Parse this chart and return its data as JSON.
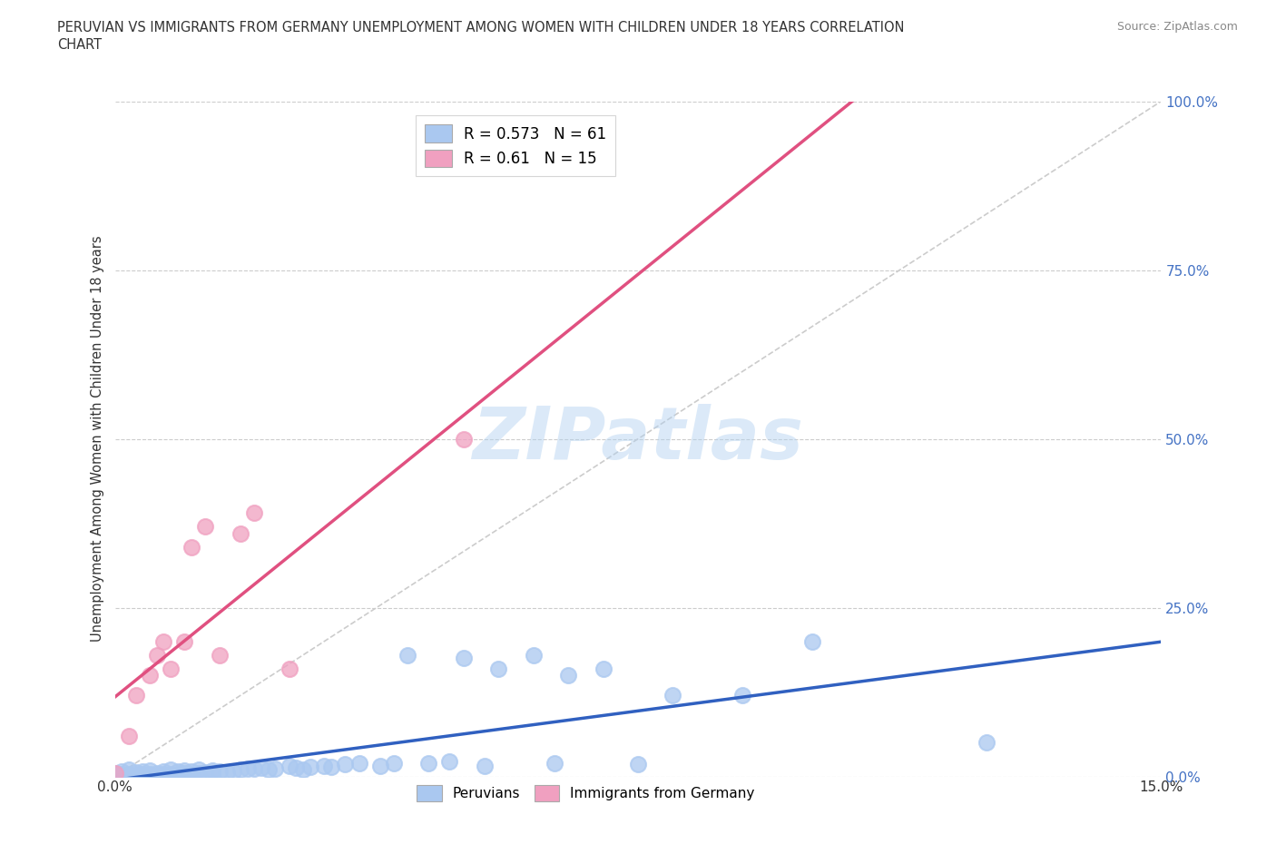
{
  "title_line1": "PERUVIAN VS IMMIGRANTS FROM GERMANY UNEMPLOYMENT AMONG WOMEN WITH CHILDREN UNDER 18 YEARS CORRELATION",
  "title_line2": "CHART",
  "source": "Source: ZipAtlas.com",
  "ylabel": "Unemployment Among Women with Children Under 18 years",
  "xmin": 0.0,
  "xmax": 0.15,
  "ymin": 0.0,
  "ymax": 1.0,
  "yticks": [
    0.0,
    0.25,
    0.5,
    0.75,
    1.0
  ],
  "ytick_labels": [
    "0.0%",
    "25.0%",
    "50.0%",
    "75.0%",
    "100.0%"
  ],
  "peruvian_color": "#aac8f0",
  "germany_color": "#f0a0c0",
  "peruvian_line_color": "#3060c0",
  "germany_line_color": "#e05080",
  "diag_color": "#cccccc",
  "grid_color": "#cccccc",
  "peruvian_R": 0.573,
  "peruvian_N": 61,
  "germany_R": 0.61,
  "germany_N": 15,
  "watermark": "ZIPatlas",
  "peruvian_x": [
    0.0,
    0.001,
    0.001,
    0.002,
    0.002,
    0.003,
    0.003,
    0.004,
    0.004,
    0.005,
    0.005,
    0.006,
    0.007,
    0.007,
    0.008,
    0.008,
    0.009,
    0.009,
    0.01,
    0.01,
    0.011,
    0.011,
    0.012,
    0.012,
    0.013,
    0.014,
    0.014,
    0.015,
    0.016,
    0.017,
    0.018,
    0.019,
    0.02,
    0.021,
    0.022,
    0.023,
    0.025,
    0.026,
    0.027,
    0.028,
    0.03,
    0.031,
    0.033,
    0.035,
    0.038,
    0.04,
    0.042,
    0.045,
    0.048,
    0.05,
    0.053,
    0.055,
    0.06,
    0.063,
    0.065,
    0.07,
    0.075,
    0.08,
    0.09,
    0.1,
    0.125
  ],
  "peruvian_y": [
    0.005,
    0.003,
    0.008,
    0.004,
    0.01,
    0.002,
    0.006,
    0.003,
    0.007,
    0.004,
    0.009,
    0.005,
    0.003,
    0.008,
    0.004,
    0.01,
    0.003,
    0.007,
    0.005,
    0.009,
    0.004,
    0.008,
    0.005,
    0.01,
    0.006,
    0.004,
    0.009,
    0.007,
    0.006,
    0.008,
    0.01,
    0.012,
    0.011,
    0.013,
    0.01,
    0.012,
    0.015,
    0.013,
    0.01,
    0.014,
    0.016,
    0.014,
    0.018,
    0.02,
    0.015,
    0.019,
    0.18,
    0.02,
    0.022,
    0.175,
    0.015,
    0.16,
    0.18,
    0.02,
    0.15,
    0.16,
    0.018,
    0.12,
    0.12,
    0.2,
    0.05
  ],
  "germany_x": [
    0.0,
    0.002,
    0.003,
    0.005,
    0.006,
    0.007,
    0.008,
    0.01,
    0.011,
    0.013,
    0.015,
    0.018,
    0.02,
    0.025,
    0.05
  ],
  "germany_y": [
    0.005,
    0.06,
    0.12,
    0.15,
    0.18,
    0.2,
    0.16,
    0.2,
    0.34,
    0.37,
    0.18,
    0.36,
    0.39,
    0.16,
    0.5
  ]
}
